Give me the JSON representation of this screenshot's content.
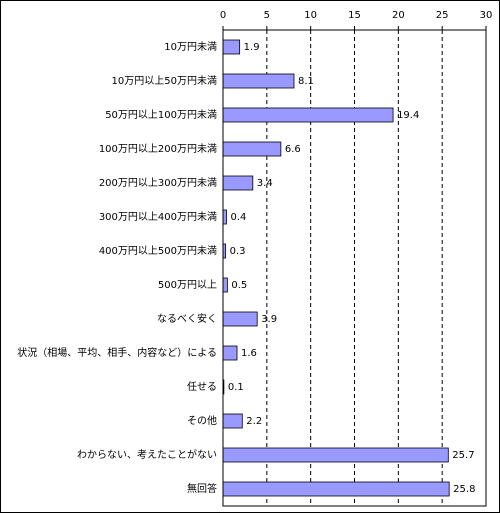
{
  "chart_data": {
    "type": "bar",
    "orientation": "horizontal",
    "categories": [
      "10万円未満",
      "10万円以上50万円未満",
      "50万円以上100万円未満",
      "100万円以上200万円未満",
      "200万円以上300万円未満",
      "300万円以上400万円未満",
      "400万円以上500万円未満",
      "500万円以上",
      "なるべく安く",
      "状況（相場、平均、相手、内容など）による",
      "任せる",
      "その他",
      "わからない、考えたことがない",
      "無回答"
    ],
    "values": [
      1.9,
      8.1,
      19.4,
      6.6,
      3.4,
      0.4,
      0.3,
      0.5,
      3.9,
      1.6,
      0.1,
      2.2,
      25.7,
      25.8
    ],
    "color": "#9999ff",
    "xlim": [
      0,
      30
    ],
    "xticks": [
      0,
      5,
      10,
      15,
      20,
      25,
      30
    ],
    "grid": true
  }
}
